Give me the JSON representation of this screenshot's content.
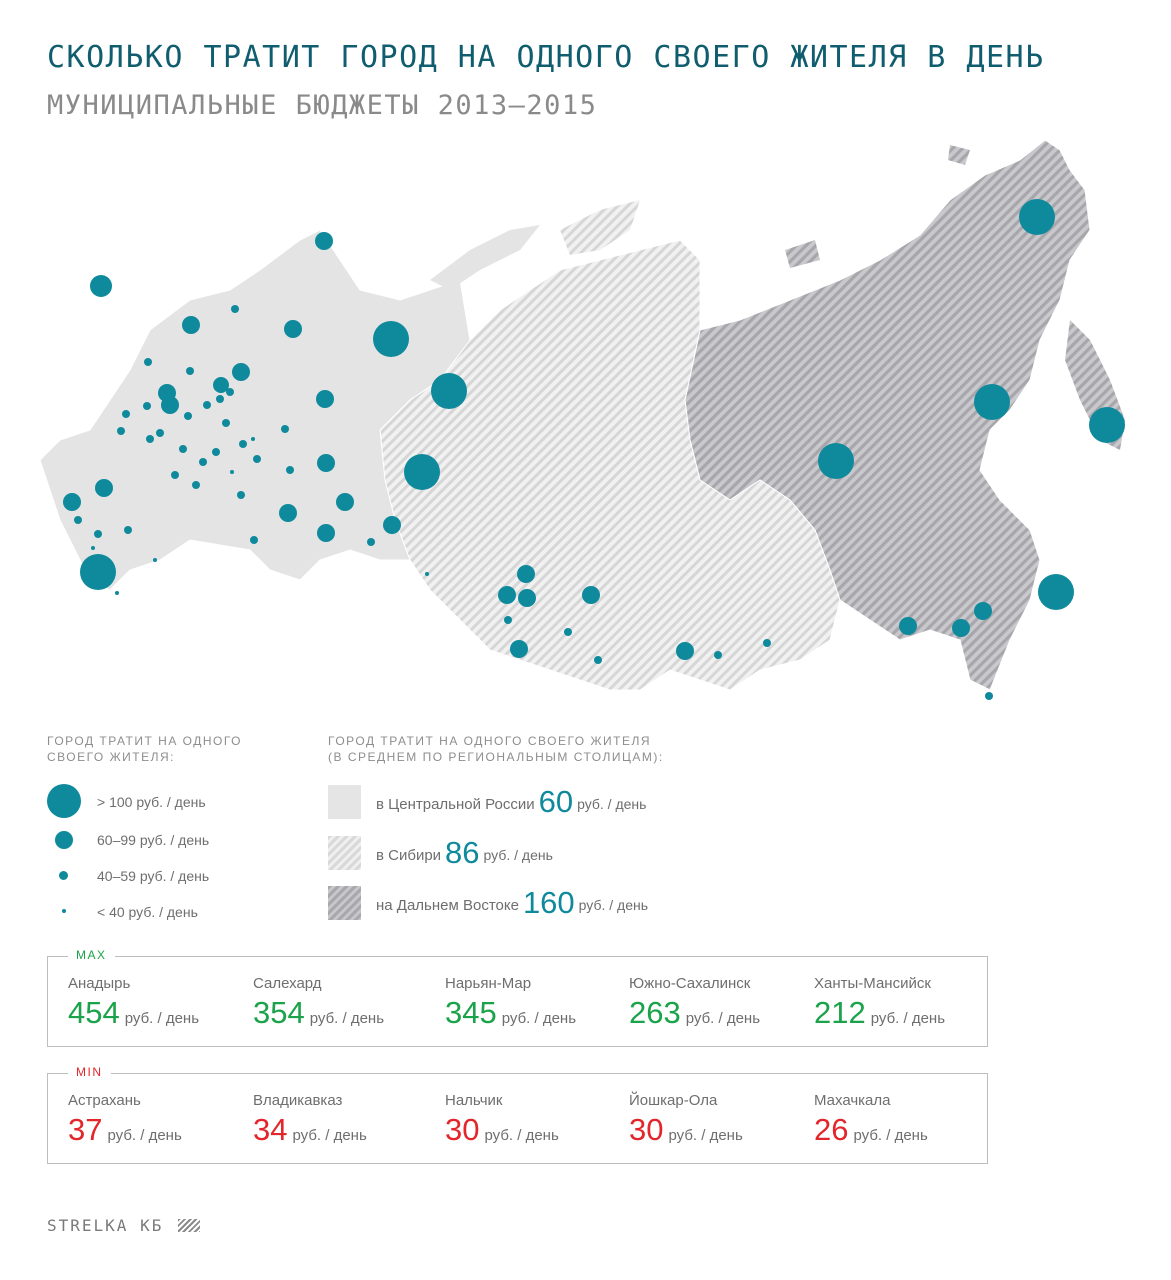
{
  "title": "СКОЛЬКО ТРАТИТ ГОРОД НА ОДНОГО СВОЕГО ЖИТЕЛЯ В ДЕНЬ",
  "subtitle": "МУНИЦИПАЛЬНЫЕ БЮДЖЕТЫ 2013–2015",
  "colors": {
    "city_dot": "#0e8a9c",
    "central_russia": "#e5e5e5",
    "siberia_hatch": "#d9d9d9",
    "far_east_hatch": "#a8a8ad",
    "max_values": "#1aa34a",
    "min_values": "#e3262b"
  },
  "size_legend": {
    "heading_line1": "ГОРОД ТРАТИТ НА ОДНОГО",
    "heading_line2": "СВОЕГО ЖИТЕЛЯ:",
    "items": [
      {
        "label": "> 100 руб. / день"
      },
      {
        "label": "60–99 руб. / день"
      },
      {
        "label": "40–59 руб. / день"
      },
      {
        "label": "< 40 руб. / день"
      }
    ]
  },
  "region_legend": {
    "heading_line1": "ГОРОД ТРАТИТ НА ОДНОГО СВОЕГО ЖИТЕЛЯ",
    "heading_line2": "(В СРЕДНЕМ ПО РЕГИОНАЛЬНЫМ СТОЛИЦАМ):",
    "items": [
      {
        "label": "в Центральной России",
        "value": "60",
        "unit": "руб. / день"
      },
      {
        "label": "в Сибири",
        "value": "86",
        "unit": "руб. / день"
      },
      {
        "label": "на Дальнем Востоке",
        "value": "160",
        "unit": "руб. / день"
      }
    ]
  },
  "max": {
    "tag": "MAX",
    "cities": [
      {
        "name": "Анадырь",
        "value": "454",
        "unit": "руб. / день"
      },
      {
        "name": "Салехард",
        "value": "354",
        "unit": "руб. / день"
      },
      {
        "name": "Нарьян-Мар",
        "value": "345",
        "unit": "руб. / день"
      },
      {
        "name": "Южно-Сахалинск",
        "value": "263",
        "unit": "руб. / день"
      },
      {
        "name": "Ханты-Мансийск",
        "value": "212",
        "unit": "руб. / день"
      }
    ]
  },
  "min": {
    "tag": "MIN",
    "cities": [
      {
        "name": "Астрахань",
        "value": "37",
        "unit": "руб. / день"
      },
      {
        "name": "Владикавказ",
        "value": "34",
        "unit": "руб. / день"
      },
      {
        "name": "Нальчик",
        "value": "30",
        "unit": "руб. / день"
      },
      {
        "name": "Йошкар-Ола",
        "value": "30",
        "unit": "руб. / день"
      },
      {
        "name": "Махачкала",
        "value": "26",
        "unit": "руб. / день"
      }
    ]
  },
  "logo": "STRELKA КБ"
}
